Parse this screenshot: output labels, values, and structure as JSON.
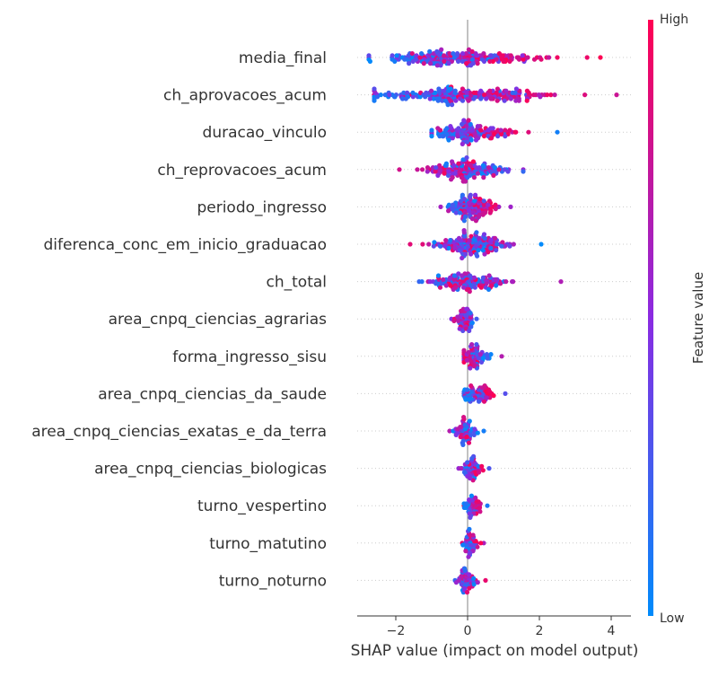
{
  "chart_data": {
    "type": "scatter",
    "subtype": "shap-beeswarm",
    "xlabel": "SHAP value (impact on model output)",
    "xlim": [
      -3.1,
      4.6
    ],
    "xticks": [
      -2,
      0,
      2,
      4
    ],
    "xtick_labels": [
      "−2",
      "0",
      "2",
      "4"
    ],
    "colorbar": {
      "title": "Feature value",
      "high_label": "High",
      "low_label": "Low",
      "high_color": "#ff0052",
      "mid_color": "#8a2be2",
      "low_color": "#008bfb"
    },
    "zero_line": true,
    "features": [
      {
        "name": "media_final",
        "min": -2.75,
        "max": 3.7,
        "mode": "inc",
        "low_center": -1.35,
        "high_center": 0.9,
        "points": 220
      },
      {
        "name": "ch_aprovacoes_acum",
        "min": -2.6,
        "max": 4.15,
        "mode": "inc",
        "low_center": -1.4,
        "high_center": 1.0,
        "points": 230
      },
      {
        "name": "duracao_vinculo",
        "min": -1.0,
        "max": 2.5,
        "mode": "inc",
        "low_center": -0.6,
        "high_center": 0.7,
        "points": 160
      },
      {
        "name": "ch_reprovacoes_acum",
        "min": -1.9,
        "max": 1.55,
        "mode": "dec",
        "low_center": 0.3,
        "high_center": -0.4,
        "points": 160
      },
      {
        "name": "periodo_ingresso",
        "min": -0.75,
        "max": 1.2,
        "mode": "inc",
        "low_center": -0.25,
        "high_center": 0.45,
        "points": 130
      },
      {
        "name": "diferenca_conc_em_inicio_graduacao",
        "min": -1.6,
        "max": 2.05,
        "mode": "mix",
        "low_center": 0.0,
        "high_center": 0.1,
        "points": 170
      },
      {
        "name": "ch_total",
        "min": -1.35,
        "max": 2.6,
        "mode": "mix",
        "low_center": -0.2,
        "high_center": 0.1,
        "points": 140
      },
      {
        "name": "area_cnpq_ciencias_agrarias",
        "min": -0.45,
        "max": 0.25,
        "mode": "dec",
        "low_center": 0.0,
        "high_center": -0.15,
        "points": 60
      },
      {
        "name": "forma_ingresso_sisu",
        "min": -0.1,
        "max": 0.95,
        "mode": "dec",
        "low_center": 0.45,
        "high_center": -0.05,
        "points": 70
      },
      {
        "name": "area_cnpq_ciencias_da_saude",
        "min": -0.1,
        "max": 1.05,
        "mode": "inc",
        "low_center": 0.0,
        "high_center": 0.5,
        "points": 70
      },
      {
        "name": "area_cnpq_ciencias_exatas_e_da_terra",
        "min": -0.5,
        "max": 0.45,
        "mode": "dec",
        "low_center": 0.05,
        "high_center": -0.15,
        "points": 60
      },
      {
        "name": "area_cnpq_ciencias_biologicas",
        "min": -0.25,
        "max": 0.6,
        "mode": "inc",
        "low_center": 0.0,
        "high_center": 0.25,
        "points": 55
      },
      {
        "name": "turno_vespertino",
        "min": -0.1,
        "max": 0.55,
        "mode": "inc",
        "low_center": 0.0,
        "high_center": 0.25,
        "points": 50
      },
      {
        "name": "turno_matutino",
        "min": -0.15,
        "max": 0.45,
        "mode": "inc",
        "low_center": 0.0,
        "high_center": 0.2,
        "points": 50
      },
      {
        "name": "turno_noturno",
        "min": -0.35,
        "max": 0.5,
        "mode": "dec",
        "low_center": 0.05,
        "high_center": -0.1,
        "points": 55
      }
    ]
  }
}
